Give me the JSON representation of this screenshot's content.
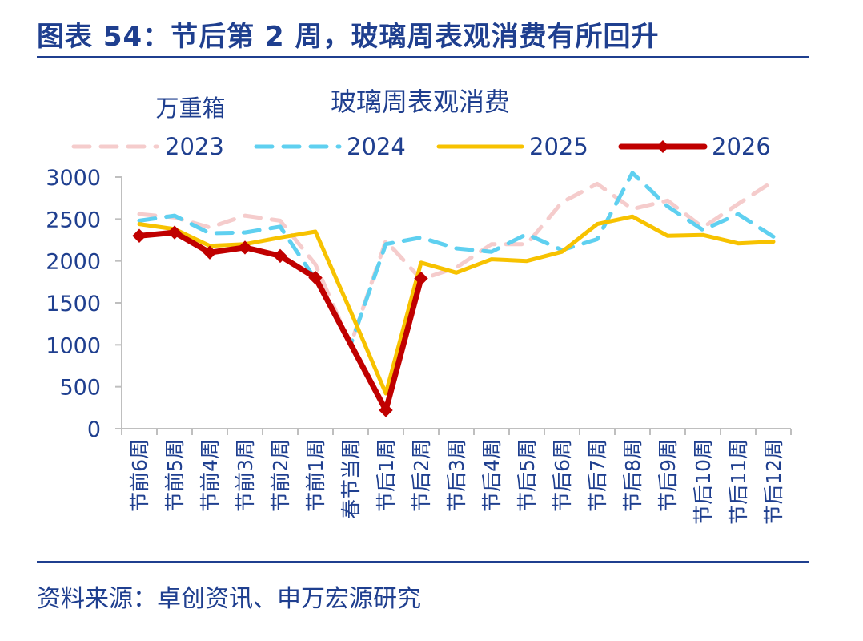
{
  "figure_title": "图表 54：节后第 2 周，玻璃周表观消费有所回升",
  "source_note": "资料来源：卓创资讯、申万宏源研究",
  "colors": {
    "title_blue": "#1f3f8f",
    "axis_text": "#1f3f8f",
    "axis_line": "#bfbfbf",
    "series": [
      "#f5cccc",
      "#5fd0f0",
      "#f7c200",
      "#c00000"
    ]
  },
  "chart_data": {
    "type": "line",
    "title": "玻璃周表观消费",
    "ylabel": "万重箱",
    "xlabel": "",
    "ylim": [
      0,
      3000
    ],
    "yticks": [
      0,
      500,
      1000,
      1500,
      2000,
      2500,
      3000
    ],
    "grid": false,
    "legend_position": "top",
    "categories": [
      "节前6周",
      "节前5周",
      "节前4周",
      "节前3周",
      "节前2周",
      "节前1周",
      "春节当周",
      "节后1周",
      "节后2周",
      "节后3周",
      "节后4周",
      "节后5周",
      "节后6周",
      "节后7周",
      "节后8周",
      "节后9周",
      "节后10周",
      "节后11周",
      "节后12周"
    ],
    "series": [
      {
        "name": "2023",
        "style": "dashed",
        "values": [
          2560,
          2520,
          2400,
          2540,
          2480,
          1960,
          1000,
          2240,
          1780,
          1920,
          2200,
          2200,
          2700,
          2920,
          2620,
          2720,
          2400,
          2680,
          2950
        ]
      },
      {
        "name": "2024",
        "style": "dashed",
        "values": [
          2480,
          2540,
          2330,
          2340,
          2410,
          1780,
          1000,
          2200,
          2280,
          2150,
          2110,
          2320,
          2130,
          2260,
          3050,
          2650,
          2370,
          2560,
          2290
        ]
      },
      {
        "name": "2025",
        "style": "solid",
        "values": [
          2440,
          2380,
          2180,
          2200,
          2280,
          2350,
          1400,
          420,
          1980,
          1860,
          2020,
          2000,
          2110,
          2440,
          2530,
          2300,
          2310,
          2210,
          2230
        ]
      },
      {
        "name": "2026",
        "style": "solid-marker",
        "values": [
          2300,
          2340,
          2100,
          2160,
          2060,
          1800,
          null,
          220,
          1790,
          null,
          null,
          null,
          null,
          null,
          null,
          null,
          null,
          null,
          null
        ]
      }
    ]
  }
}
